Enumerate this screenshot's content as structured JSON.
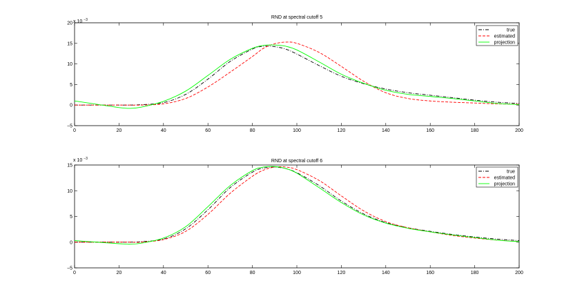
{
  "figure": {
    "background": "#ffffff"
  },
  "chart_data": [
    {
      "type": "line",
      "title": "RND at spectral cutoff 5",
      "xlabel": "",
      "ylabel": "",
      "y_scale_label": {
        "prefix": "x 10",
        "exponent": "−3"
      },
      "xlim": [
        0,
        200
      ],
      "ylim": [
        -5,
        20
      ],
      "xticks": [
        0,
        20,
        40,
        60,
        80,
        100,
        120,
        140,
        160,
        180,
        200
      ],
      "yticks": [
        -5,
        0,
        5,
        10,
        15,
        20
      ],
      "ytick_labels": [
        "−5",
        "0",
        "5",
        "10",
        "15",
        "20"
      ],
      "grid": false,
      "legend_position": "top-right",
      "x": [
        0,
        10,
        20,
        25,
        30,
        40,
        50,
        60,
        70,
        80,
        85,
        90,
        95,
        100,
        110,
        120,
        130,
        140,
        150,
        160,
        170,
        180,
        190,
        200
      ],
      "series": [
        {
          "name": "true",
          "color": "#000000",
          "style": "dashdot",
          "values": [
            0,
            0,
            0,
            0,
            0.1,
            0.6,
            2.6,
            6.3,
            10.6,
            13.6,
            14.3,
            14.2,
            13.6,
            12.4,
            9.6,
            7.0,
            5.2,
            3.9,
            3.0,
            2.4,
            1.8,
            1.2,
            0.7,
            0.4
          ]
        },
        {
          "name": "estimated",
          "color": "#ff0000",
          "style": "dashed",
          "values": [
            0,
            0,
            0,
            0,
            0,
            0.3,
            1.6,
            4.4,
            8.0,
            11.8,
            13.8,
            14.9,
            15.3,
            15.0,
            12.8,
            9.4,
            5.8,
            3.0,
            1.6,
            1.0,
            0.7,
            0.5,
            0.3,
            0.2
          ]
        },
        {
          "name": "projection",
          "color": "#00ff00",
          "style": "solid",
          "values": [
            1.0,
            0.2,
            -0.6,
            -0.8,
            -0.5,
            0.9,
            3.4,
            7.2,
            11.1,
            13.8,
            14.5,
            14.6,
            14.3,
            13.4,
            10.5,
            7.5,
            5.3,
            3.6,
            2.6,
            2.1,
            1.6,
            1.0,
            0.4,
            0.1
          ]
        }
      ]
    },
    {
      "type": "line",
      "title": "RND at spectral cutoff 6",
      "xlabel": "",
      "ylabel": "",
      "y_scale_label": {
        "prefix": "x 10",
        "exponent": "−3"
      },
      "xlim": [
        0,
        200
      ],
      "ylim": [
        -5,
        15
      ],
      "xticks": [
        0,
        20,
        40,
        60,
        80,
        100,
        120,
        140,
        160,
        180,
        200
      ],
      "yticks": [
        -5,
        0,
        5,
        10,
        15
      ],
      "ytick_labels": [
        "−5",
        "0",
        "5",
        "10",
        "15"
      ],
      "grid": false,
      "legend_position": "top-right",
      "x": [
        0,
        10,
        20,
        25,
        30,
        40,
        50,
        60,
        70,
        80,
        85,
        90,
        95,
        100,
        110,
        120,
        130,
        140,
        150,
        160,
        170,
        180,
        190,
        200
      ],
      "series": [
        {
          "name": "true",
          "color": "#000000",
          "style": "dashdot",
          "values": [
            0,
            0,
            0,
            0,
            0.1,
            0.6,
            2.6,
            6.3,
            10.6,
            13.6,
            14.4,
            14.6,
            14.3,
            13.5,
            11.0,
            8.0,
            5.5,
            3.8,
            2.8,
            2.1,
            1.5,
            1.0,
            0.6,
            0.3
          ]
        },
        {
          "name": "estimated",
          "color": "#ff0000",
          "style": "dashed",
          "values": [
            0,
            0,
            0,
            0,
            0,
            0.5,
            2.1,
            5.4,
            9.5,
            12.8,
            14.0,
            14.6,
            14.6,
            14.1,
            12.0,
            9.0,
            6.1,
            4.0,
            2.8,
            2.0,
            1.3,
            0.8,
            0.4,
            0.1
          ]
        },
        {
          "name": "projection",
          "color": "#00ff00",
          "style": "solid",
          "values": [
            0.3,
            0,
            -0.3,
            -0.4,
            -0.2,
            0.8,
            3.0,
            6.9,
            11.0,
            13.9,
            14.6,
            14.7,
            14.3,
            13.4,
            10.6,
            7.7,
            5.3,
            3.7,
            2.7,
            2.0,
            1.4,
            0.9,
            0.4,
            0.1
          ]
        }
      ]
    }
  ]
}
